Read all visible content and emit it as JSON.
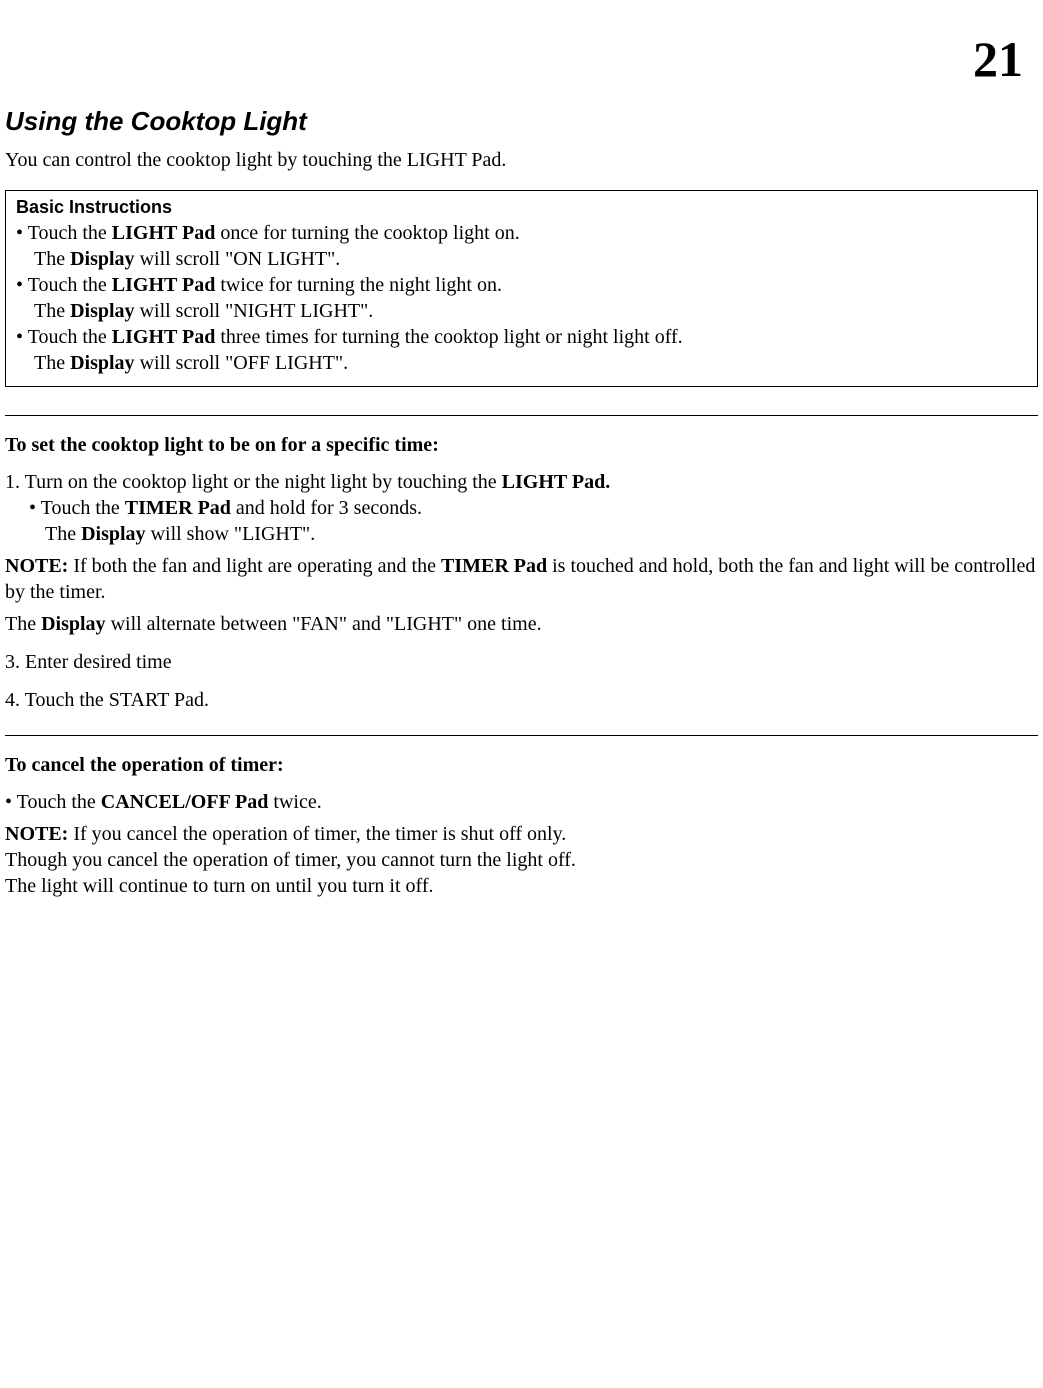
{
  "page_number": "21",
  "heading": "Using the Cooktop Light",
  "intro": "You can control the cooktop light by touching the LIGHT Pad.",
  "box": {
    "title": "Basic Instructions",
    "b1a": "• Touch the ",
    "b1b": "LIGHT Pad",
    "b1c": " once for turning the cooktop light on.",
    "b1d_a": "The ",
    "b1d_b": "Display",
    "b1d_c": " will scroll \"ON LIGHT\".",
    "b2a": "• Touch the ",
    "b2b": "LIGHT Pad",
    "b2c": " twice for turning the night light on.",
    "b2d_a": "The ",
    "b2d_b": "Display",
    "b2d_c": " will scroll \"NIGHT LIGHT\".",
    "b3a": "• Touch the ",
    "b3b": "LIGHT Pad",
    "b3c": " three times for turning the cooktop light or night light off.",
    "b3d_a": "The ",
    "b3d_b": "Display",
    "b3d_c": " will scroll \"OFF LIGHT\"."
  },
  "set_section": {
    "heading": "To set the cooktop light to be on for a specific time:",
    "l1a": "1. Turn on the cooktop light or the night light by touching the ",
    "l1b": "LIGHT Pad.",
    "l2a": "• Touch the ",
    "l2b": "TIMER Pad",
    "l2c": " and hold for 3 seconds.",
    "l3a": "The ",
    "l3b": "Display",
    "l3c": " will show \"LIGHT\".",
    "note1a": "NOTE:",
    "note1b": " If both the fan and light are operating and the ",
    "note1c": "TIMER Pad",
    "note1d": " is touched and hold, both the fan and light will be controlled by the timer.",
    "disp_a": "The ",
    "disp_b": "Display",
    "disp_c": " will alternate between \"FAN\" and \"LIGHT\" one time.",
    "step3": "3. Enter desired time",
    "step4": "4. Touch the START Pad."
  },
  "cancel_section": {
    "heading": "To cancel the operation of timer:",
    "b1a": "• Touch the ",
    "b1b": "CANCEL/OFF Pad",
    "b1c": " twice.",
    "note_a": "NOTE:",
    "note_b": " If you cancel the operation of timer, the timer is shut off only.",
    "line2": "Though you cancel the operation of timer, you cannot turn the light off.",
    "line3": "The light will continue to turn on until you turn it off."
  }
}
